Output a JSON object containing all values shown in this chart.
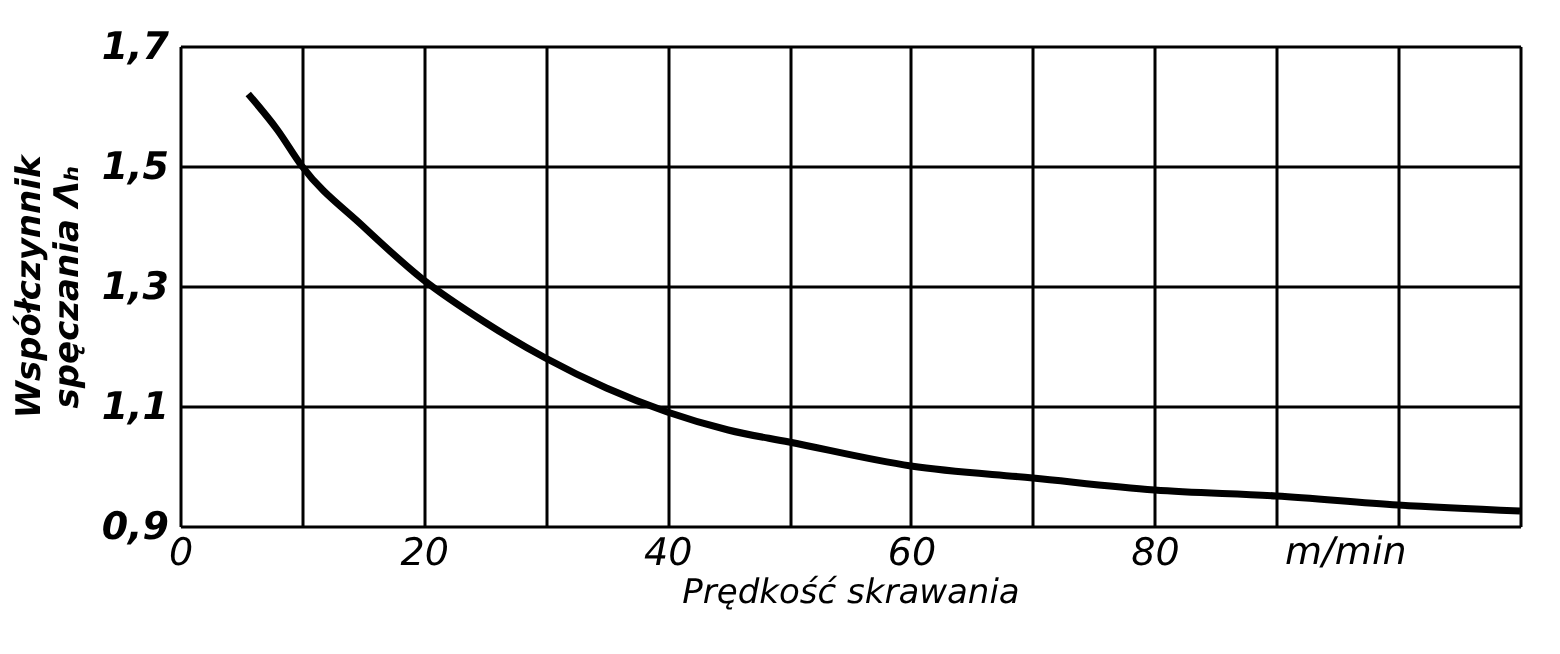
{
  "chart_data": {
    "type": "line",
    "xlabel": "Prędkość skrawania",
    "ylabel": "Współczynnik\nspęczania Λₕ",
    "annotations": [
      "m/min"
    ],
    "x": [
      5.6,
      8,
      10,
      15,
      20,
      25,
      30,
      35,
      40,
      45,
      50,
      60,
      70,
      80,
      90,
      100,
      110
    ],
    "series": [
      {
        "color": "#000000",
        "values": [
          1.62,
          1.56,
          1.5,
          1.4,
          1.31,
          1.24,
          1.18,
          1.13,
          1.09,
          1.06,
          1.04,
          1.0,
          0.98,
          0.96,
          0.95,
          0.935,
          0.925
        ]
      }
    ],
    "xlim": [
      0,
      110
    ],
    "xticks": [
      0,
      {
        "value": 10,
        "label": null
      },
      20,
      {
        "value": 30,
        "label": null
      },
      40,
      {
        "value": 50,
        "label": null
      },
      60,
      {
        "value": 70,
        "label": null
      },
      80,
      {
        "value": 90,
        "label": null
      },
      {
        "value": 100,
        "label": null
      },
      {
        "value": 110,
        "label": null
      }
    ],
    "ylim": [
      0.9,
      1.7
    ],
    "yticks": [
      {
        "value": 0.9,
        "label": "0,9"
      },
      {
        "value": 1.1,
        "label": "1,1"
      },
      {
        "value": 1.3,
        "label": "1,3"
      },
      {
        "value": 1.5,
        "label": "1,5"
      },
      {
        "value": 1.7,
        "label": "1,7"
      }
    ],
    "grid": true,
    "marker": "none",
    "line_style": "solid"
  }
}
